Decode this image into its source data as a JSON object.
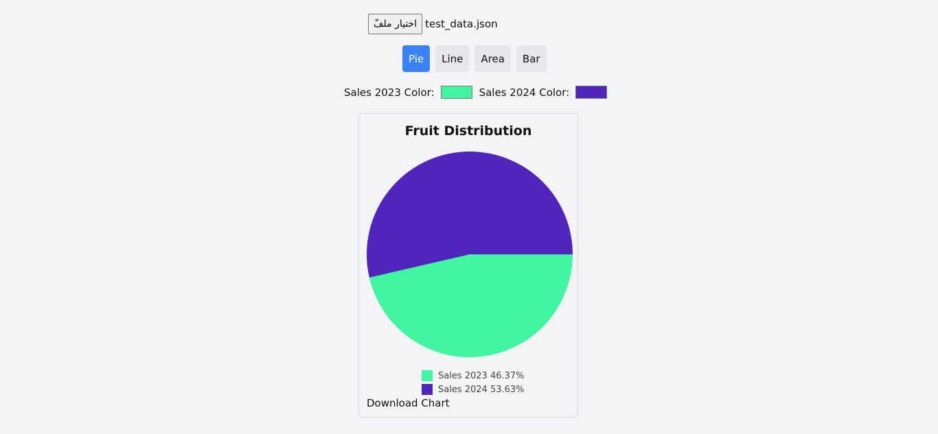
{
  "file_input": {
    "button_label": "اختيار ملفّ",
    "file_name": "test_data.json"
  },
  "chart_types": [
    {
      "label": "Pie",
      "active": true
    },
    {
      "label": "Line",
      "active": false
    },
    {
      "label": "Area",
      "active": false
    },
    {
      "label": "Bar",
      "active": false
    }
  ],
  "color_pickers": [
    {
      "label": "Sales 2023 Color:",
      "value": "#42f5a1"
    },
    {
      "label": "Sales 2024 Color:",
      "value": "#5025bc"
    }
  ],
  "download_label": "Download Chart",
  "chart_data": {
    "type": "pie",
    "title": "Fruit Distribution",
    "series": [
      {
        "name": "Sales 2023",
        "percent": 46.37,
        "color": "#42f5a1",
        "legend": "Sales 2023 46.37%"
      },
      {
        "name": "Sales 2024",
        "percent": 53.63,
        "color": "#5025bc",
        "legend": "Sales 2024 53.63%"
      }
    ],
    "legend_position": "bottom"
  }
}
